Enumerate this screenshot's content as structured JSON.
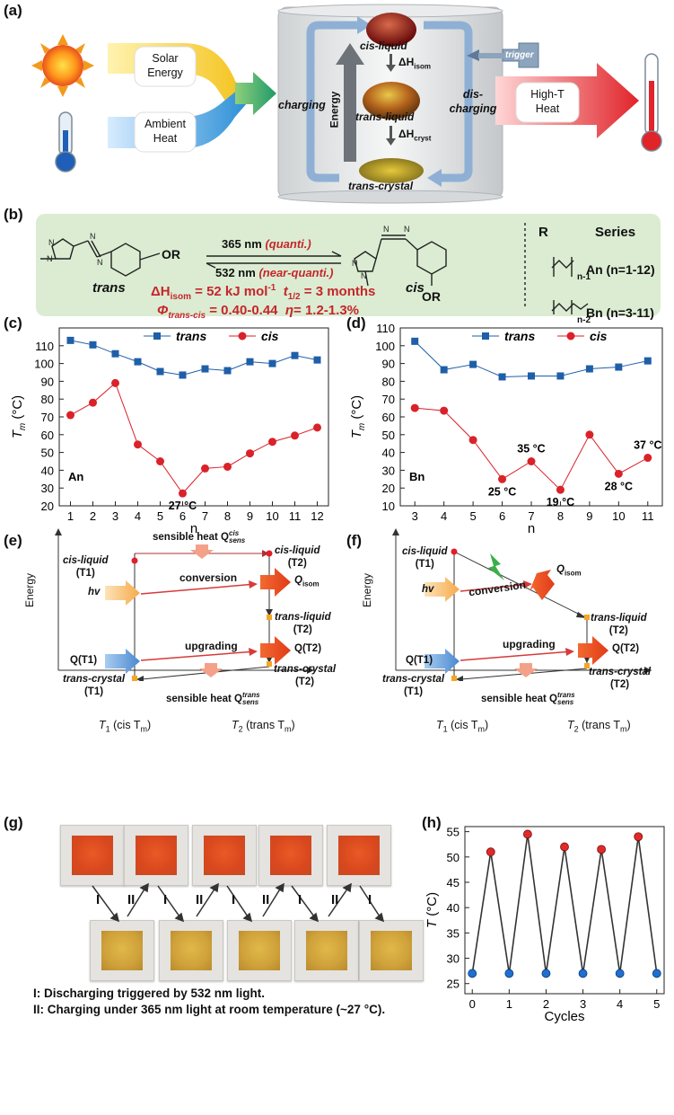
{
  "panel_a": {
    "label": "(a)",
    "solar": "Solar\nEnergy",
    "ambient": "Ambient\nHeat",
    "charging": "charging",
    "discharging": "dis-\ncharging",
    "energy": "Energy",
    "trigger": "trigger",
    "cis_liquid": "cis-liquid",
    "trans_liquid": "trans-liquid",
    "trans_crystal": "trans-crystal",
    "dh_isom": "ΔH",
    "dh_isom_sub": "isom",
    "dh_cryst": "ΔH",
    "dh_cryst_sub": "cryst",
    "high_t": "High-T\nHeat"
  },
  "panel_b": {
    "label": "(b)",
    "trans": "trans",
    "cis": "cis",
    "or": "OR",
    "nm365": "365 nm",
    "quanti": "(quanti.)",
    "nm532": "532 nm",
    "near_quanti": "(near-quanti.)",
    "dh_line": "ΔH",
    "dh_sub": "isom",
    "dh_value": " = 52 kJ mol",
    "dh_exp": "-1",
    "t_half": "t",
    "t_half_sub": "1/2",
    "t_half_val": " = 3 months",
    "phi": "Φ",
    "phi_sub": "trans-cis",
    "phi_val": " = 0.40-0.44",
    "eta": "η",
    "eta_val": "= 1.2-1.3%",
    "r_header": "R",
    "series_header": "Series",
    "an_series": "An (n=1-12)",
    "bn_series": "Bn (n=3-11)",
    "n1": "n-1",
    "n2": "n-2"
  },
  "panel_c": {
    "label": "(c)",
    "chart_data": {
      "type": "line",
      "title": "",
      "xlabel": "n",
      "ylabel": "T_m (°C)",
      "xlim": [
        0.5,
        12.5
      ],
      "ylim": [
        20,
        120
      ],
      "xticks": [
        1,
        2,
        3,
        4,
        5,
        6,
        7,
        8,
        9,
        10,
        11,
        12
      ],
      "yticks": [
        20,
        30,
        40,
        50,
        60,
        70,
        80,
        90,
        100,
        110
      ],
      "annotation_series": "An",
      "annotations": [
        {
          "text": "27 °C",
          "x": 6,
          "y": 27
        }
      ],
      "series": [
        {
          "name": "trans",
          "color": "#1f5fa8",
          "marker": "square",
          "x": [
            1,
            2,
            3,
            4,
            5,
            6,
            7,
            8,
            9,
            10,
            11,
            12
          ],
          "values": [
            113,
            110.5,
            105.5,
            101,
            95.5,
            93.5,
            97,
            96,
            101,
            100,
            104.5,
            102
          ]
        },
        {
          "name": "cis",
          "color": "#d9222a",
          "marker": "circle",
          "x": [
            1,
            2,
            3,
            4,
            5,
            6,
            7,
            8,
            9,
            10,
            11,
            12
          ],
          "values": [
            71,
            78,
            89,
            54.5,
            45,
            27,
            41,
            42,
            49.5,
            56,
            59.5,
            64
          ]
        }
      ]
    }
  },
  "panel_d": {
    "label": "(d)",
    "chart_data": {
      "type": "line",
      "title": "",
      "xlabel": "n",
      "ylabel": "T_m (°C)",
      "xlim": [
        2.5,
        11.5
      ],
      "ylim": [
        10,
        110
      ],
      "xticks": [
        3,
        4,
        5,
        6,
        7,
        8,
        9,
        10,
        11
      ],
      "yticks": [
        10,
        20,
        30,
        40,
        50,
        60,
        70,
        80,
        90,
        100,
        110
      ],
      "annotation_series": "Bn",
      "annotations": [
        {
          "text": "25 °C",
          "x": 6,
          "y": 25
        },
        {
          "text": "35 °C",
          "x": 7,
          "y": 35
        },
        {
          "text": "19 °C",
          "x": 8,
          "y": 19
        },
        {
          "text": "28 °C",
          "x": 10,
          "y": 28
        },
        {
          "text": "37 °C",
          "x": 11,
          "y": 37
        }
      ],
      "series": [
        {
          "name": "trans",
          "color": "#1f5fa8",
          "marker": "square",
          "x": [
            3,
            4,
            5,
            6,
            7,
            8,
            9,
            10,
            11
          ],
          "values": [
            102.5,
            86.5,
            89.5,
            82.5,
            83,
            83,
            87,
            88,
            91.5
          ]
        },
        {
          "name": "cis",
          "color": "#d9222a",
          "marker": "circle",
          "x": [
            3,
            4,
            5,
            6,
            7,
            8,
            9,
            10,
            11
          ],
          "values": [
            65,
            63.5,
            47,
            25,
            35,
            19,
            50,
            28,
            37
          ]
        }
      ]
    }
  },
  "panel_e": {
    "label": "(e)",
    "energy": "Energy",
    "t1": "T",
    "t1_sub": "1",
    "t1_paren": " (cis T",
    "t1_m": "m",
    "t2": "T",
    "t2_sub": "2",
    "t2_paren": " (trans T",
    "t2_m": "m",
    "sens_top": "sensible heat Q",
    "sens_top_sup": "cis",
    "sens_top_sub": "sens",
    "sens_bot": "sensible heat Q",
    "sens_bot_sup": "trans",
    "sens_bot_sub": "sens",
    "cis_l_t1": "cis-liquid",
    "cis_l_t2": "cis-liquid",
    "trans_l_t2": "trans-liquid",
    "trans_c_t1": "trans-crystal",
    "trans_c_t2": "trans-crystal",
    "p_t1": "(T1)",
    "p_t2": "(T2)",
    "hv": "hv",
    "qt1": "Q(T1)",
    "qt2": "Q(T2)",
    "conversion": "conversion",
    "upgrading": "upgrading",
    "qisom": "Q",
    "qisom_sub": "isom"
  },
  "panel_f": {
    "label": "(f)",
    "energy": "Energy",
    "cis_l_t1": "cis-liquid",
    "trans_l_t2": "trans-liquid",
    "trans_c_t1": "trans-crystal",
    "trans_c_t2": "trans-crystal",
    "hv": "hv",
    "qt1": "Q(T1)",
    "qt2": "Q(T2)",
    "conversion": "conversion",
    "upgrading": "upgrading",
    "qisom": "Q",
    "qisom_sub": "isom",
    "sens_bot": "sensible heat Q",
    "sens_bot_sup": "trans",
    "sens_bot_sub": "sens"
  },
  "panel_g": {
    "label": "(g)",
    "step_i": "I",
    "step_ii": "II",
    "caption1": "I: Discharging triggered by 532 nm light.",
    "caption2": "II: Charging under 365 nm light at room temperature (~27 °C)."
  },
  "panel_h": {
    "label": "(h)",
    "chart_data": {
      "type": "line",
      "title": "",
      "xlabel": "Cycles",
      "ylabel": "T (°C)",
      "xlim": [
        -0.2,
        5.2
      ],
      "ylim": [
        23,
        56
      ],
      "xticks": [
        0,
        1,
        2,
        3,
        4,
        5
      ],
      "yticks": [
        25,
        30,
        35,
        40,
        45,
        50,
        55
      ],
      "series": [
        {
          "name": "temperature",
          "color": "#333333",
          "x": [
            0,
            0.5,
            1,
            1.5,
            2,
            2.5,
            3,
            3.5,
            4,
            4.5,
            5
          ],
          "values": [
            27,
            51,
            27,
            54.5,
            27,
            52,
            27,
            51.5,
            27,
            54,
            27
          ]
        }
      ]
    }
  },
  "colors": {
    "trans": "#1f5fa8",
    "cis": "#d9222a",
    "panel_b_bg": "#dbecd2",
    "red_text": "#c6262b"
  }
}
